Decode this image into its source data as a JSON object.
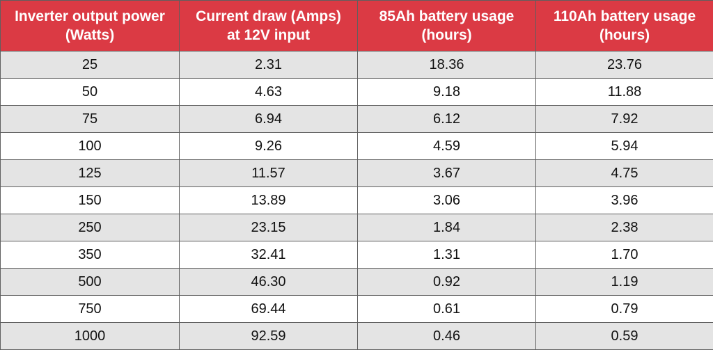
{
  "colors": {
    "header_background": "#db3a44",
    "header_text": "#ffffff",
    "row_shade": "#e4e4e4",
    "row_plain": "#ffffff",
    "grid_line": "#5f5f5f"
  },
  "table": {
    "headers": [
      {
        "line1": "Inverter output power",
        "line2": "(Watts)"
      },
      {
        "line1": "Current draw (Amps)",
        "line2": "at 12V input"
      },
      {
        "line1": "85Ah battery usage",
        "line2": "(hours)"
      },
      {
        "line1": "110Ah battery usage",
        "line2": "(hours)"
      }
    ],
    "rows": [
      [
        "25",
        "2.31",
        "18.36",
        "23.76"
      ],
      [
        "50",
        "4.63",
        "9.18",
        "11.88"
      ],
      [
        "75",
        "6.94",
        "6.12",
        "7.92"
      ],
      [
        "100",
        "9.26",
        "4.59",
        "5.94"
      ],
      [
        "125",
        "11.57",
        "3.67",
        "4.75"
      ],
      [
        "150",
        "13.89",
        "3.06",
        "3.96"
      ],
      [
        "250",
        "23.15",
        "1.84",
        "2.38"
      ],
      [
        "350",
        "32.41",
        "1.31",
        "1.70"
      ],
      [
        "500",
        "46.30",
        "0.92",
        "1.19"
      ],
      [
        "750",
        "69.44",
        "0.61",
        "0.79"
      ],
      [
        "1000",
        "92.59",
        "0.46",
        "0.59"
      ]
    ]
  }
}
